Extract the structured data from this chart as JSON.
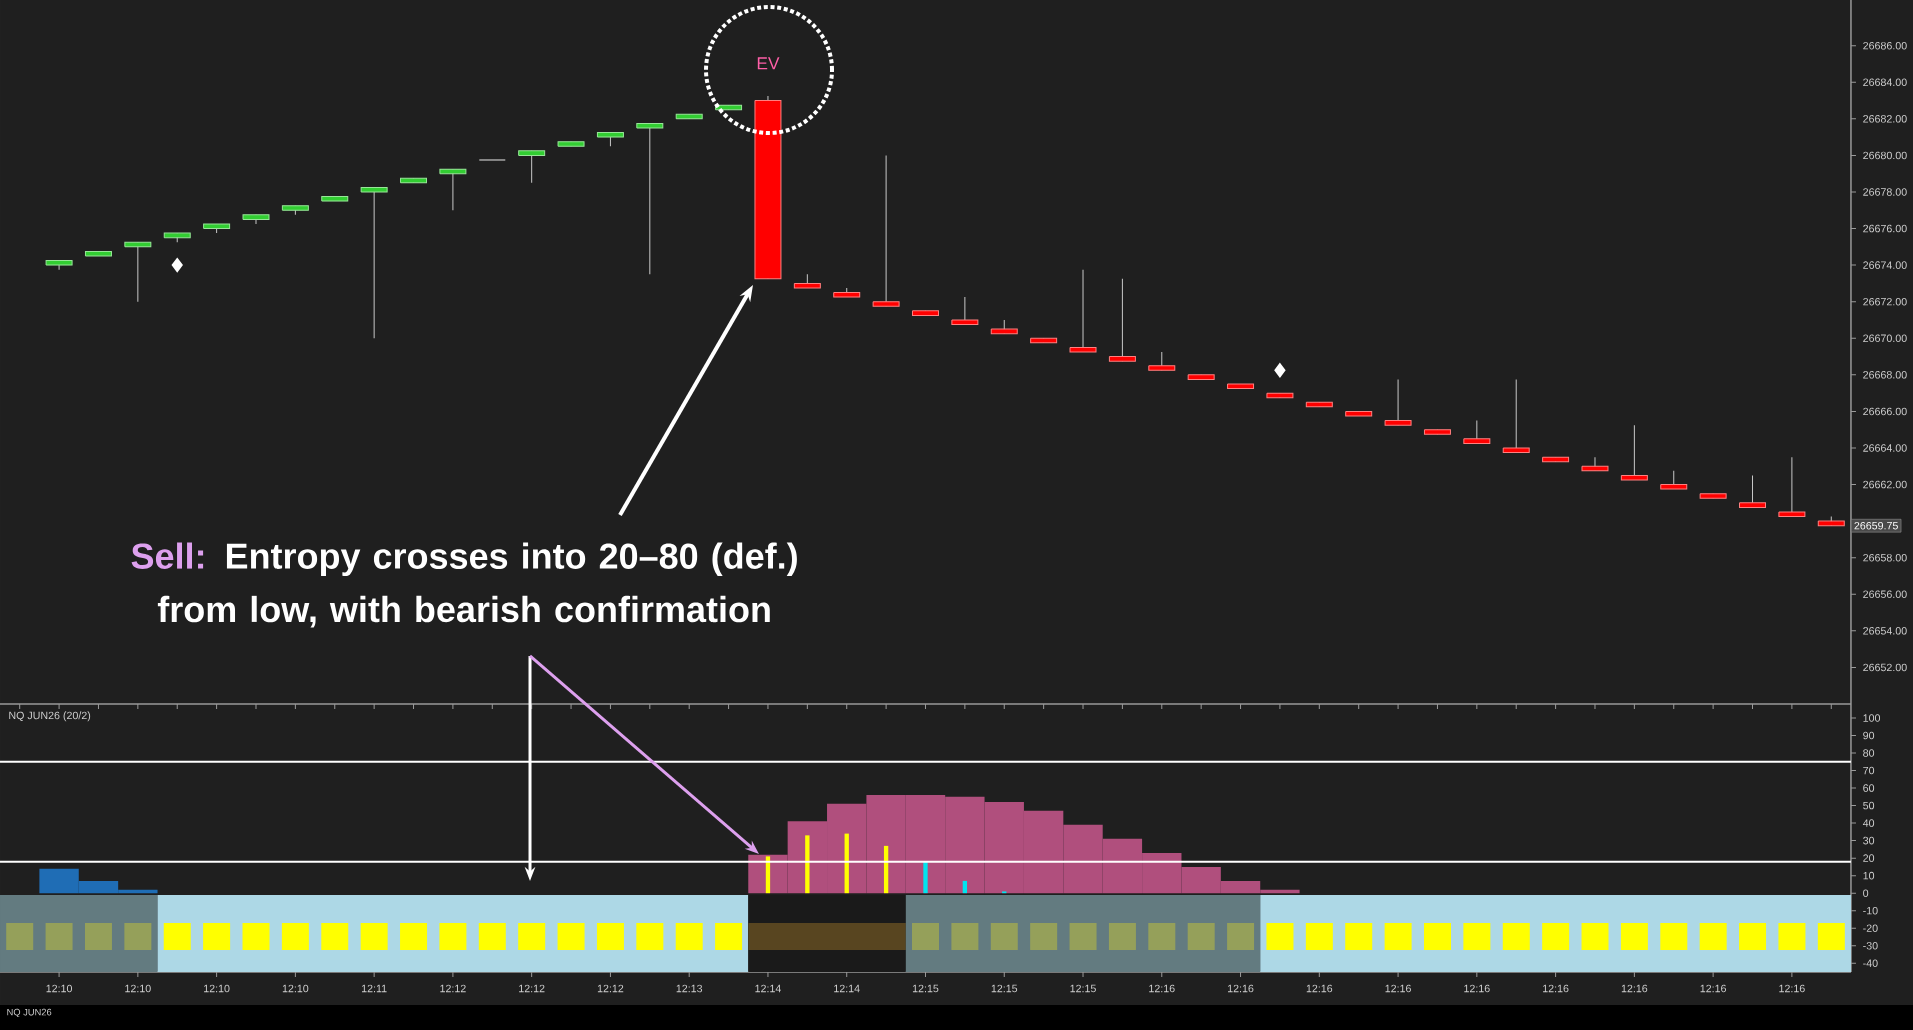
{
  "chart_data": [
    {
      "type": "candlestick",
      "categories": [
        null,
        null,
        null,
        null,
        null,
        null,
        null,
        null,
        null,
        null,
        null,
        null,
        null,
        null,
        null,
        null,
        null,
        null,
        null,
        null,
        null,
        null,
        null,
        null,
        null,
        null,
        null,
        null,
        null,
        null,
        null,
        null,
        null,
        null,
        null,
        null,
        null,
        null,
        null,
        null,
        null,
        null,
        null,
        null,
        null,
        null
      ],
      "ohlc": [
        [
          26674.0,
          26674.25,
          26673.75,
          26674.25
        ],
        [
          26674.5,
          26674.75,
          26674.5,
          26674.75
        ],
        [
          26675.0,
          26675.25,
          26672.0,
          26675.25
        ],
        [
          26675.5,
          26675.75,
          26675.25,
          26675.75
        ],
        [
          26676.0,
          26676.25,
          26675.75,
          26676.25
        ],
        [
          26676.5,
          26676.75,
          26676.25,
          26676.75
        ],
        [
          26677.0,
          26677.25,
          26676.75,
          26677.25
        ],
        [
          26677.5,
          26677.75,
          26677.5,
          26677.75
        ],
        [
          26678.0,
          26678.25,
          26670.0,
          26678.25
        ],
        [
          26678.5,
          26678.75,
          26678.5,
          26678.75
        ],
        [
          26679.0,
          26679.25,
          26677.0,
          26679.25
        ],
        [
          26679.75,
          26679.75,
          26679.75,
          26679.75
        ],
        [
          26680.0,
          26680.25,
          26678.5,
          26680.25
        ],
        [
          26680.5,
          26680.75,
          26680.5,
          26680.75
        ],
        [
          26681.0,
          26681.25,
          26680.5,
          26681.25
        ],
        [
          26681.5,
          26681.75,
          26673.5,
          26681.75
        ],
        [
          26682.0,
          26682.25,
          26682.0,
          26682.25
        ],
        [
          26682.5,
          26682.75,
          26682.5,
          26682.75
        ],
        [
          26683.0,
          26683.25,
          26673.25,
          26673.25
        ],
        [
          26673.0,
          26673.5,
          26672.75,
          26672.75
        ],
        [
          26672.5,
          26672.75,
          26672.25,
          26672.25
        ],
        [
          26672.0,
          26680.0,
          26671.75,
          26671.75
        ],
        [
          26671.5,
          26671.5,
          26671.25,
          26671.25
        ],
        [
          26671.0,
          26672.25,
          26670.75,
          26670.75
        ],
        [
          26670.5,
          26671.0,
          26670.25,
          26670.25
        ],
        [
          26670.0,
          26670.0,
          26669.75,
          26669.75
        ],
        [
          26669.5,
          26673.75,
          26669.25,
          26669.25
        ],
        [
          26669.0,
          26673.25,
          26668.75,
          26668.75
        ],
        [
          26668.5,
          26669.25,
          26668.25,
          26668.25
        ],
        [
          26668.0,
          26668.0,
          26667.75,
          26667.75
        ],
        [
          26667.5,
          26667.5,
          26667.25,
          26667.25
        ],
        [
          26667.0,
          26667.0,
          26666.75,
          26666.75
        ],
        [
          26666.5,
          26666.5,
          26666.25,
          26666.25
        ],
        [
          26666.0,
          26666.0,
          26665.75,
          26665.75
        ],
        [
          26665.5,
          26667.75,
          26665.25,
          26665.25
        ],
        [
          26665.0,
          26665.0,
          26664.75,
          26664.75
        ],
        [
          26664.5,
          26665.5,
          26664.25,
          26664.25
        ],
        [
          26664.0,
          26667.75,
          26663.75,
          26663.75
        ],
        [
          26663.5,
          26663.5,
          26663.25,
          26663.25
        ],
        [
          26663.0,
          26663.5,
          26662.75,
          26662.75
        ],
        [
          26662.5,
          26665.25,
          26662.25,
          26662.25
        ],
        [
          26662.0,
          26662.75,
          26661.75,
          26661.75
        ],
        [
          26661.5,
          26661.5,
          26661.25,
          26661.25
        ],
        [
          26661.0,
          26662.5,
          26660.75,
          26660.75
        ],
        [
          26660.5,
          26663.5,
          26660.25,
          26660.25
        ],
        [
          26660.0,
          26660.25,
          26659.75,
          26659.75
        ]
      ],
      "colors": [
        "#32cd32",
        "#32cd32",
        "#32cd32",
        "#32cd32",
        "#32cd32",
        "#32cd32",
        "#32cd32",
        "#32cd32",
        "#32cd32",
        "#32cd32",
        "#32cd32",
        "#c8c8c8",
        "#32cd32",
        "#32cd32",
        "#32cd32",
        "#32cd32",
        "#32cd32",
        "#32cd32",
        "#ff0000",
        "#ff0000",
        "#ff0000",
        "#ff0000",
        "#ff0000",
        "#ff0000",
        "#ff0000",
        "#ff0000",
        "#ff0000",
        "#ff0000",
        "#ff0000",
        "#ff0000",
        "#ff0000",
        "#ff0000",
        "#ff0000",
        "#ff0000",
        "#ff0000",
        "#ff0000",
        "#ff0000",
        "#ff0000",
        "#ff0000",
        "#ff0000",
        "#ff0000",
        "#ff0000",
        "#ff0000",
        "#ff0000",
        "#ff0000",
        "#ff0000"
      ],
      "series": [
        {
          "type": "scatter",
          "color": "#ffffff",
          "marker": "diamond",
          "values": [
            null,
            null,
            null,
            26674.0,
            null,
            null,
            null,
            null,
            null,
            null,
            null,
            null,
            null,
            null,
            null,
            null,
            null,
            null,
            null,
            null,
            null,
            null,
            null,
            null,
            null,
            null,
            null,
            null,
            null,
            null,
            null,
            26668.25,
            null,
            null,
            null,
            null,
            null,
            null,
            null,
            null,
            null,
            null,
            null,
            null,
            null,
            null
          ]
        }
      ],
      "ylim": [
        26650,
        26688.5
      ],
      "yticks": [
        {
          "value": 26652,
          "label": "26652.00"
        },
        {
          "value": 26654,
          "label": "26654.00"
        },
        {
          "value": 26656,
          "label": "26656.00"
        },
        {
          "value": 26658,
          "label": "26658.00"
        },
        {
          "value": 26662,
          "label": "26662.00"
        },
        {
          "value": 26664,
          "label": "26664.00"
        },
        {
          "value": 26666,
          "label": "26666.00"
        },
        {
          "value": 26668,
          "label": "26668.00"
        },
        {
          "value": 26670,
          "label": "26670.00"
        },
        {
          "value": 26672,
          "label": "26672.00"
        },
        {
          "value": 26674,
          "label": "26674.00"
        },
        {
          "value": 26676,
          "label": "26676.00"
        },
        {
          "value": 26678,
          "label": "26678.00"
        },
        {
          "value": 26680,
          "label": "26680.00"
        },
        {
          "value": 26682,
          "label": "26682.00"
        },
        {
          "value": 26684,
          "label": "26684.00"
        },
        {
          "value": 26686,
          "label": "26686.00"
        }
      ],
      "annotations": [
        "Sell:",
        "Entropy crosses into 20–80 (def.) from low, with bearish confirmation",
        "EV",
        "26659.75"
      ]
    },
    {
      "type": "bar",
      "title": "NQ JUN26 (20/2)",
      "categories": [
        "12:10",
        null,
        "12:10",
        null,
        "12:10",
        null,
        "12:10",
        null,
        "12:11",
        null,
        "12:12",
        null,
        "12:12",
        null,
        "12:12",
        null,
        "12:13",
        null,
        "12:14",
        null,
        "12:14",
        null,
        "12:15",
        null,
        "12:15",
        null,
        "12:15",
        null,
        "12:16",
        null,
        "12:16",
        null,
        "12:16",
        null,
        "12:16",
        null,
        "12:16",
        null,
        "12:16",
        null,
        "12:16",
        null,
        "12:16",
        null,
        "12:16",
        null
      ],
      "series": [
        {
          "color": "#1f6db5",
          "values": [
            14,
            7,
            2,
            null,
            null,
            null,
            null,
            null,
            null,
            null,
            null,
            null,
            null,
            null,
            null,
            null,
            null,
            null,
            null,
            null,
            null,
            null,
            null,
            null,
            null,
            null,
            null,
            null,
            null,
            null,
            null,
            null,
            null,
            null,
            null,
            null,
            null,
            null,
            null,
            null,
            null,
            null,
            null,
            null,
            null,
            null
          ]
        },
        {
          "color": "#b04f7d",
          "values": [
            null,
            null,
            null,
            null,
            null,
            null,
            null,
            null,
            null,
            null,
            null,
            null,
            null,
            null,
            null,
            null,
            null,
            null,
            22,
            41,
            51,
            56,
            56,
            55,
            52,
            47,
            39,
            31,
            23,
            15,
            7,
            2,
            null,
            null,
            null,
            null,
            null,
            null,
            null,
            null,
            null,
            null,
            null,
            null,
            null,
            null
          ]
        },
        {
          "color": "#ffff00",
          "values": [
            null,
            null,
            null,
            null,
            null,
            null,
            null,
            null,
            null,
            null,
            null,
            null,
            null,
            null,
            null,
            null,
            null,
            null,
            21,
            33,
            34,
            27,
            null,
            null,
            null,
            null,
            null,
            null,
            null,
            null,
            null,
            null,
            null,
            null,
            null,
            null,
            null,
            null,
            null,
            null,
            null,
            null,
            null,
            null,
            null,
            null
          ]
        },
        {
          "color": "#00e5ee",
          "values": [
            null,
            null,
            null,
            null,
            null,
            null,
            null,
            null,
            null,
            null,
            null,
            null,
            null,
            null,
            null,
            null,
            null,
            null,
            null,
            null,
            null,
            null,
            18,
            7,
            1,
            null,
            null,
            null,
            null,
            null,
            null,
            null,
            null,
            null,
            null,
            null,
            null,
            null,
            null,
            null,
            null,
            null,
            null,
            null,
            null,
            null
          ]
        }
      ],
      "ylim": [
        -45,
        108
      ],
      "yticks": [
        -40,
        -30,
        -20,
        -10,
        0,
        10,
        20,
        30,
        40,
        50,
        60,
        70,
        80,
        90,
        100
      ],
      "ref_lines": [
        {
          "axis": "y",
          "value": 75,
          "color": "#ffffff"
        },
        {
          "axis": "y",
          "value": 18,
          "color": "#ffffff"
        }
      ],
      "annotations": [
        "NQ JUN26"
      ]
    }
  ]
}
